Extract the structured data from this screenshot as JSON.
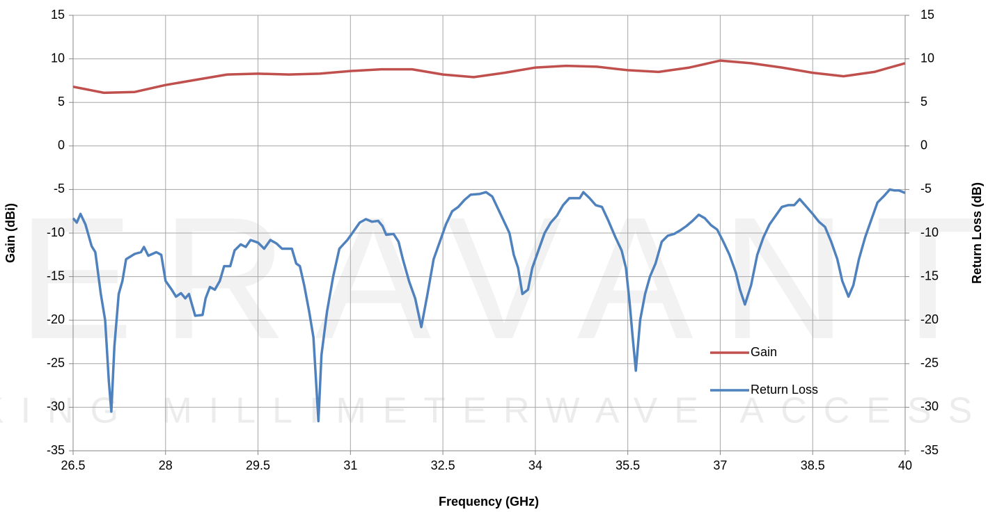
{
  "chart_data": {
    "type": "line",
    "watermark": [
      "ERAVANT",
      "MAKING MILLIMETERWAVE ACCESSIBLE"
    ],
    "xlabel": "Frequency (GHz)",
    "ylabel": "Gain (dBi)",
    "y2label": "Return Loss (dB)",
    "xlim": [
      26.5,
      40
    ],
    "xticks": [
      26.5,
      28,
      29.5,
      31,
      32.5,
      34,
      35.5,
      37,
      38.5,
      40
    ],
    "ylim": [
      -35,
      15
    ],
    "yticks": [
      -35,
      -30,
      -25,
      -20,
      -15,
      -10,
      -5,
      0,
      5,
      10,
      15
    ],
    "y2lim": [
      -35,
      15
    ],
    "y2ticks": [
      -35,
      -30,
      -25,
      -20,
      -15,
      -10,
      -5,
      0,
      5,
      10,
      15
    ],
    "grid": true,
    "legend": "lower right",
    "series": [
      {
        "name": "Gain",
        "color": "#c0504d",
        "x": [
          26.5,
          27,
          27.5,
          28,
          28.5,
          29,
          29.5,
          30,
          30.5,
          31,
          31.5,
          32,
          32.5,
          33,
          33.5,
          34,
          34.5,
          35,
          35.5,
          36,
          36.5,
          37,
          37.5,
          38,
          38.5,
          39,
          39.5,
          40
        ],
        "values": [
          6.8,
          6.1,
          6.2,
          7.0,
          7.6,
          8.2,
          8.3,
          8.2,
          8.3,
          8.6,
          8.8,
          8.8,
          8.2,
          7.9,
          8.4,
          9.0,
          9.2,
          9.1,
          8.7,
          8.5,
          9.0,
          9.8,
          9.5,
          9.0,
          8.4,
          8.0,
          8.5,
          9.5
        ]
      },
      {
        "name": "Return Loss",
        "color": "#4f81bd",
        "axis": "y2",
        "x": [
          26.5,
          26.56,
          26.62,
          26.7,
          26.8,
          26.86,
          26.95,
          27.02,
          27.08,
          27.12,
          27.17,
          27.24,
          27.3,
          27.36,
          27.5,
          27.6,
          27.65,
          27.72,
          27.85,
          27.93,
          28.0,
          28.1,
          28.17,
          28.25,
          28.32,
          28.38,
          28.48,
          28.6,
          28.65,
          28.72,
          28.8,
          28.88,
          28.95,
          29.05,
          29.12,
          29.22,
          29.3,
          29.38,
          29.5,
          29.6,
          29.7,
          29.8,
          29.89,
          30.05,
          30.12,
          30.18,
          30.25,
          30.33,
          30.4,
          30.48,
          30.53,
          30.62,
          30.72,
          30.82,
          30.95,
          31.05,
          31.15,
          31.25,
          31.35,
          31.45,
          31.52,
          31.58,
          31.7,
          31.78,
          31.85,
          31.95,
          32.05,
          32.15,
          32.25,
          32.35,
          32.45,
          32.55,
          32.65,
          32.75,
          32.85,
          32.95,
          33.1,
          33.2,
          33.3,
          33.38,
          33.48,
          33.58,
          33.65,
          33.72,
          33.79,
          33.88,
          33.95,
          34.05,
          34.15,
          34.25,
          34.35,
          34.45,
          34.55,
          34.65,
          34.72,
          34.78,
          34.88,
          34.98,
          35.08,
          35.18,
          35.3,
          35.4,
          35.47,
          35.53,
          35.58,
          35.63,
          35.7,
          35.78,
          35.86,
          35.95,
          36.05,
          36.15,
          36.25,
          36.35,
          36.45,
          36.55,
          36.65,
          36.75,
          36.85,
          36.95,
          37.05,
          37.15,
          37.25,
          37.32,
          37.4,
          37.5,
          37.6,
          37.7,
          37.8,
          37.9,
          38.0,
          38.1,
          38.2,
          38.29,
          38.4,
          38.5,
          38.6,
          38.7,
          38.8,
          38.9,
          38.98,
          39.08,
          39.16,
          39.25,
          39.35,
          39.45,
          39.55,
          39.65,
          39.75,
          39.82,
          39.9,
          40
        ],
        "values": [
          -8.3,
          -8.8,
          -7.8,
          -9,
          -11.5,
          -12.2,
          -17,
          -20,
          -27,
          -30.5,
          -23,
          -17,
          -15.5,
          -13,
          -12.4,
          -12.2,
          -11.6,
          -12.6,
          -12.2,
          -12.5,
          -15.5,
          -16.5,
          -17.3,
          -16.9,
          -17.5,
          -17,
          -19.5,
          -19.4,
          -17.5,
          -16.2,
          -16.5,
          -15.5,
          -13.8,
          -13.8,
          -12,
          -11.3,
          -11.6,
          -10.8,
          -11.1,
          -11.8,
          -10.8,
          -11.2,
          -11.8,
          -11.8,
          -13.5,
          -13.8,
          -16,
          -19,
          -22,
          -31.6,
          -24,
          -19,
          -15,
          -11.8,
          -10.8,
          -9.8,
          -8.8,
          -8.4,
          -8.7,
          -8.6,
          -9.2,
          -10.2,
          -10.1,
          -11,
          -13,
          -15.5,
          -17.5,
          -20.8,
          -17,
          -13,
          -11,
          -9,
          -7.5,
          -7,
          -6.2,
          -5.6,
          -5.5,
          -5.3,
          -5.8,
          -7,
          -8.5,
          -10,
          -12.5,
          -14,
          -17,
          -16.5,
          -14,
          -12,
          -10,
          -8.8,
          -8,
          -6.8,
          -6,
          -6,
          -6,
          -5.3,
          -6,
          -6.8,
          -7,
          -8.5,
          -10.5,
          -12,
          -14,
          -18,
          -22,
          -25.8,
          -20,
          -17,
          -15,
          -13.5,
          -11,
          -10.3,
          -10.1,
          -9.7,
          -9.2,
          -8.6,
          -7.9,
          -8.3,
          -9.1,
          -9.6,
          -11,
          -12.5,
          -14.5,
          -16.5,
          -18.2,
          -16,
          -12.5,
          -10.5,
          -9,
          -8,
          -7,
          -6.8,
          -6.8,
          -6.1,
          -7,
          -7.8,
          -8.7,
          -9.3,
          -11,
          -13,
          -15.5,
          -17.3,
          -16,
          -13,
          -10.5,
          -8.5,
          -6.5,
          -5.8,
          -5,
          -5.1,
          -5.1,
          -5.4
        ]
      }
    ]
  }
}
